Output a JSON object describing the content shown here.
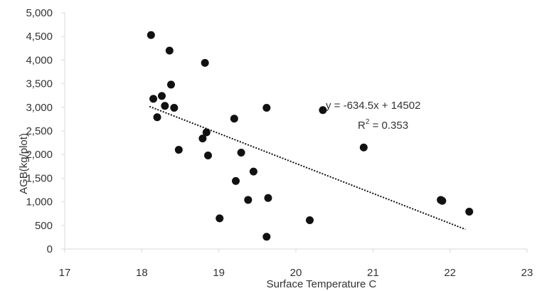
{
  "chart_data": {
    "type": "scatter",
    "title": "",
    "xlabel": "Surface Temperature C",
    "ylabel": "AGB(kg/plot)",
    "xlim": [
      17,
      23
    ],
    "ylim": [
      0,
      5000
    ],
    "x_ticks": [
      "17",
      "18",
      "19",
      "20",
      "21",
      "22",
      "23"
    ],
    "y_ticks": [
      "0",
      "500",
      "1,000",
      "1,500",
      "2,000",
      "2,500",
      "3,000",
      "3,500",
      "4,000",
      "4,500",
      "5,000"
    ],
    "grid": false,
    "legend": "none",
    "series": [
      {
        "points": [
          [
            18.12,
            4530
          ],
          [
            18.36,
            4200
          ],
          [
            18.82,
            3940
          ],
          [
            18.38,
            3480
          ],
          [
            18.15,
            3180
          ],
          [
            18.26,
            3240
          ],
          [
            18.3,
            3030
          ],
          [
            18.42,
            2990
          ],
          [
            18.2,
            2790
          ],
          [
            18.79,
            2340
          ],
          [
            18.84,
            2470
          ],
          [
            18.48,
            2100
          ],
          [
            18.86,
            1980
          ],
          [
            19.2,
            2760
          ],
          [
            19.29,
            2040
          ],
          [
            19.22,
            1440
          ],
          [
            19.45,
            1640
          ],
          [
            19.38,
            1040
          ],
          [
            19.64,
            1080
          ],
          [
            19.62,
            2990
          ],
          [
            19.01,
            650
          ],
          [
            19.62,
            260
          ],
          [
            20.18,
            610
          ],
          [
            20.35,
            2940
          ],
          [
            20.88,
            2150
          ],
          [
            21.88,
            1040
          ],
          [
            21.9,
            1020
          ],
          [
            22.25,
            790
          ]
        ]
      }
    ],
    "trendline": {
      "slope": -634.5,
      "intercept": 14502,
      "x_range": [
        18.1,
        22.2
      ],
      "equation": "y = -634.5x + 14502",
      "r2_prefix": "R",
      "r2_sup": "2",
      "r2_value": " = 0.353"
    },
    "colors": {
      "points": "#111111",
      "trend": "#111111",
      "axes": "#d9d9d9",
      "text": "#333333"
    }
  }
}
